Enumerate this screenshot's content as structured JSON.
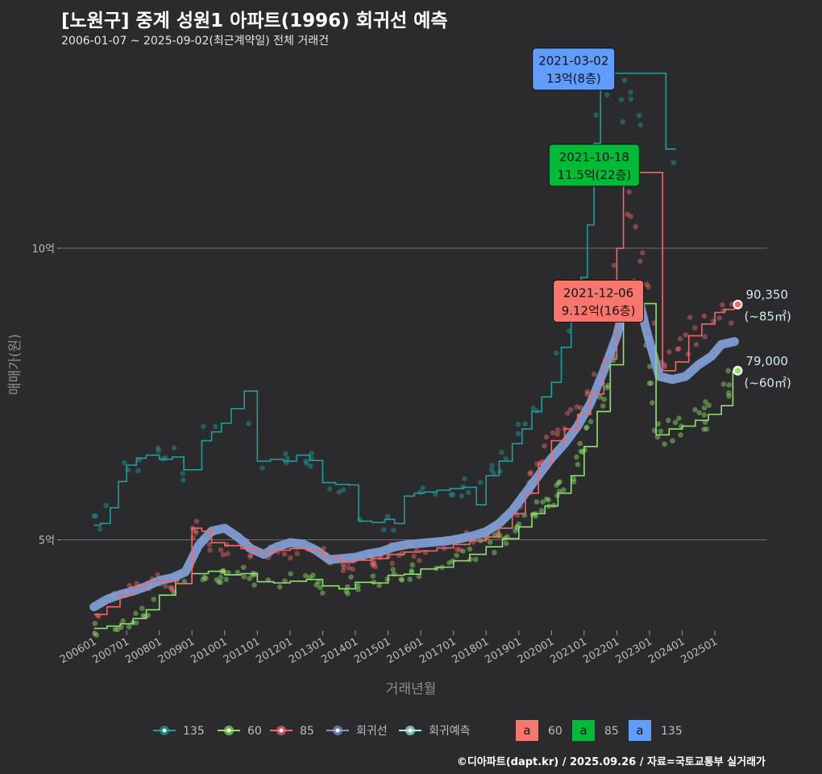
{
  "chart_data": {
    "type": "line",
    "title": "[노원구] 중계 성원1 아파트(1996) 회귀선 예측",
    "subtitle": "2006-01-07 ~ 2025-09-02(최근계약일) 전체 거래건",
    "xlabel": "거래년월",
    "ylabel": "매매가(원)",
    "caption": "©디아파트(dapt.kr) / 2025.09.26 / 자료=국토교통부 실거래가",
    "x_ticks": [
      "200601",
      "200701",
      "200801",
      "200901",
      "201001",
      "201101",
      "201201",
      "201301",
      "201401",
      "201501",
      "201601",
      "201701",
      "201801",
      "201901",
      "202001",
      "202101",
      "202201",
      "202301",
      "202401",
      "202501"
    ],
    "y_ticks": [
      {
        "value": 50000,
        "label": "5억"
      },
      {
        "value": 100000,
        "label": "10억"
      }
    ],
    "ylim": [
      35000,
      134000
    ],
    "xlim": [
      2005.0,
      2026.6
    ],
    "grid": true,
    "legend_position": "bottom",
    "colors": {
      "135": "#1f9e9a",
      "60": "#8fe36a",
      "85": "#f06868",
      "regression": "#7f9dd3",
      "forecast": "#a7edf0",
      "box60": "#f8766d",
      "box85": "#00ba38",
      "box135": "#619cff"
    },
    "series": [
      {
        "name": "135",
        "x": [
          2006.0,
          2006.2,
          2006.5,
          2006.75,
          2007.0,
          2007.3,
          2007.6,
          2008.0,
          2008.4,
          2008.75,
          2009.3,
          2009.6,
          2009.9,
          2010.2,
          2010.6,
          2011.0,
          2011.4,
          2011.8,
          2012.2,
          2012.6,
          2013.0,
          2013.4,
          2013.8,
          2014.1,
          2014.5,
          2014.9,
          2015.2,
          2015.5,
          2015.8,
          2016.1,
          2016.5,
          2016.9,
          2017.3,
          2017.7,
          2018.0,
          2018.4,
          2018.8,
          2019.1,
          2019.4,
          2019.7,
          2020.0,
          2020.3,
          2020.6,
          2020.9,
          2021.1,
          2021.3,
          2021.5,
          2023.5,
          2023.8
        ],
        "y": [
          52500,
          52800,
          55500,
          60000,
          62800,
          64000,
          64500,
          63800,
          64200,
          62000,
          67000,
          68500,
          70000,
          72500,
          75500,
          63500,
          63800,
          63500,
          64500,
          63600,
          59800,
          59500,
          59400,
          53200,
          53000,
          53500,
          52800,
          57500,
          58000,
          58200,
          58500,
          58800,
          59000,
          56000,
          61000,
          63500,
          66500,
          69000,
          72000,
          74500,
          77000,
          83000,
          88500,
          95000,
          104000,
          118000,
          130000,
          117000,
          117000
        ]
      },
      {
        "name": "60",
        "x": [
          2006.0,
          2006.4,
          2006.8,
          2007.2,
          2007.6,
          2008.0,
          2008.5,
          2009.0,
          2009.5,
          2010.0,
          2010.5,
          2011.0,
          2011.5,
          2012.0,
          2012.5,
          2013.0,
          2013.5,
          2014.0,
          2014.5,
          2015.0,
          2015.5,
          2016.0,
          2016.5,
          2017.0,
          2017.5,
          2018.0,
          2018.5,
          2019.0,
          2019.4,
          2019.8,
          2020.2,
          2020.6,
          2021.0,
          2021.4,
          2021.8,
          2022.2,
          2022.4,
          2022.8,
          2023.2,
          2023.6,
          2024.0,
          2024.4,
          2024.8,
          2025.2,
          2025.55
        ],
        "y": [
          34800,
          35200,
          35600,
          36500,
          38000,
          40500,
          42500,
          44200,
          44600,
          44000,
          44200,
          42800,
          42600,
          42900,
          43200,
          42100,
          41600,
          42700,
          42600,
          43900,
          44100,
          45000,
          45300,
          46400,
          47500,
          48800,
          50200,
          52200,
          54500,
          55800,
          58000,
          61000,
          66000,
          72000,
          80000,
          90000,
          91500,
          90500,
          68000,
          69000,
          69500,
          70500,
          71500,
          73000,
          79000
        ]
      },
      {
        "name": "85",
        "x": [
          2006.0,
          2006.4,
          2006.8,
          2007.2,
          2007.6,
          2008.0,
          2008.5,
          2009.0,
          2009.3,
          2009.6,
          2010.0,
          2010.5,
          2011.0,
          2011.5,
          2012.0,
          2012.5,
          2013.0,
          2013.5,
          2014.0,
          2014.5,
          2015.0,
          2015.5,
          2016.0,
          2016.5,
          2017.0,
          2017.5,
          2018.0,
          2018.4,
          2018.8,
          2019.2,
          2019.6,
          2020.0,
          2020.4,
          2020.8,
          2021.2,
          2021.6,
          2022.0,
          2022.2,
          2023.4,
          2023.8,
          2024.2,
          2024.6,
          2025.0,
          2025.3,
          2025.6
        ],
        "y": [
          37200,
          38500,
          40500,
          41800,
          42800,
          43000,
          42500,
          52000,
          51500,
          49500,
          49000,
          48500,
          48000,
          48200,
          48500,
          48200,
          47000,
          46200,
          46500,
          46800,
          47500,
          47900,
          48100,
          48600,
          49200,
          49800,
          50500,
          52000,
          54500,
          58000,
          63000,
          67000,
          69000,
          71500,
          75000,
          81000,
          100000,
          113000,
          79000,
          80500,
          85000,
          87000,
          89000,
          89500,
          90350
        ]
      },
      {
        "name": "회귀선",
        "x": [
          2006.0,
          2006.4,
          2006.8,
          2007.2,
          2007.6,
          2008.0,
          2008.4,
          2008.8,
          2009.2,
          2009.6,
          2010.0,
          2010.4,
          2010.8,
          2011.2,
          2011.6,
          2012.0,
          2012.4,
          2012.8,
          2013.2,
          2013.6,
          2014.0,
          2014.4,
          2014.8,
          2015.2,
          2015.6,
          2016.0,
          2016.4,
          2016.8,
          2017.2,
          2017.6,
          2018.0,
          2018.4,
          2018.8,
          2019.2,
          2019.6,
          2020.0,
          2020.4,
          2020.8,
          2021.2,
          2021.6,
          2022.0,
          2022.3,
          2022.6,
          2022.9,
          2023.3,
          2023.7,
          2024.1,
          2024.5,
          2024.9,
          2025.2,
          2025.6
        ],
        "y": [
          38500,
          39800,
          40600,
          41200,
          42000,
          43000,
          43500,
          44500,
          49000,
          51500,
          52000,
          50500,
          48500,
          47500,
          48800,
          49500,
          49300,
          48200,
          46600,
          46800,
          47000,
          47600,
          48000,
          48800,
          49200,
          49400,
          49600,
          49800,
          50200,
          50700,
          51400,
          52800,
          55000,
          58000,
          61000,
          64000,
          66500,
          69500,
          73500,
          79000,
          85000,
          92000,
          93000,
          86000,
          78000,
          77500,
          78000,
          80000,
          81500,
          83500,
          84000
        ]
      }
    ],
    "forecast": {
      "name": "회귀예측"
    },
    "annotations": [
      {
        "date": "2021-03-02",
        "text": "13억(8층)",
        "series": "135",
        "x": 2021.17,
        "y": 131000
      },
      {
        "date": "2021-10-18",
        "text": "11.5억(22층)",
        "series": "85",
        "x": 2021.8,
        "y": 114500
      },
      {
        "date": "2021-12-06",
        "text": "9.12억(16층)",
        "series": "60",
        "x": 2021.93,
        "y": 91200
      }
    ],
    "end_labels": [
      {
        "series": "85",
        "value": "90,350",
        "area": "(~85㎡)",
        "x": 2025.65,
        "y": 90350
      },
      {
        "series": "60",
        "value": "79,000",
        "area": "(~60㎡)",
        "x": 2025.65,
        "y": 79000
      }
    ],
    "legend_boxes": [
      {
        "label": "60",
        "color": "#f8766d"
      },
      {
        "label": "85",
        "color": "#00ba38"
      },
      {
        "label": "135",
        "color": "#619cff"
      }
    ]
  }
}
